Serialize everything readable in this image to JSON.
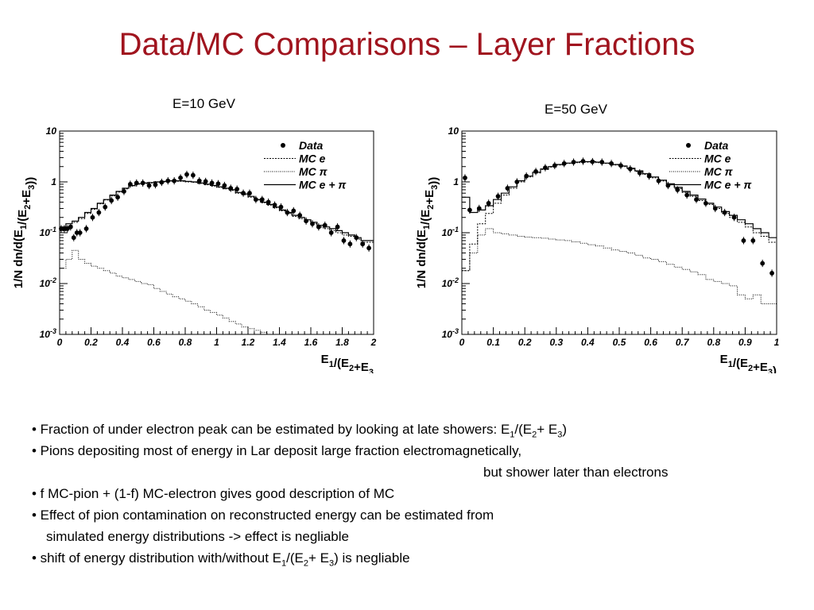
{
  "slide": {
    "title": "Data/MC Comparisons – Layer Fractions"
  },
  "notes": [
    {
      "parts": [
        {
          "t": "• Fraction of under electron peak can be estimated by looking at late showers: E"
        },
        {
          "t": "1",
          "sub": true
        },
        {
          "t": "/(E"
        },
        {
          "t": "2",
          "sub": true
        },
        {
          "t": "+ E"
        },
        {
          "t": "3",
          "sub": true
        },
        {
          "t": ")"
        }
      ]
    },
    {
      "parts": [
        {
          "t": "• Pions depositing most of energy in Lar deposit large fraction electromagnetically,"
        }
      ]
    },
    {
      "indent": 568,
      "parts": [
        {
          "t": "but shower later than electrons"
        }
      ]
    },
    {
      "parts": [
        {
          "t": "• f MC-pion + (1-f) MC-electron gives good description of MC"
        }
      ]
    },
    {
      "parts": [
        {
          "t": "• Effect of pion contamination on reconstructed energy can be estimated from"
        }
      ]
    },
    {
      "indent": 18,
      "parts": [
        {
          "t": "simulated energy distributions -> effect is negliable"
        }
      ]
    },
    {
      "parts": [
        {
          "t": "• shift of energy distribution with/without E"
        },
        {
          "t": "1",
          "sub": true
        },
        {
          "t": "/(E"
        },
        {
          "t": "2",
          "sub": true
        },
        {
          "t": "+ E"
        },
        {
          "t": "3",
          "sub": true
        },
        {
          "t": ") is negliable"
        }
      ]
    }
  ],
  "chart_data": [
    {
      "type": "scatter",
      "title": "E=10 GeV",
      "xlabel": "E1/(E2+E3",
      "ylabel": "1/N dn/d(E1/(E2+E3))",
      "y_scale": "log",
      "xlim": [
        0,
        2
      ],
      "ylim": [
        0.001,
        10
      ],
      "x_ticks": [
        0,
        0.2,
        0.4,
        0.6,
        0.8,
        1,
        1.2,
        1.4,
        1.6,
        1.8,
        2
      ],
      "x_tick_labels": [
        "0",
        "0.2",
        "0.4",
        "0.6",
        "0.8",
        "1",
        "1.2",
        "1.4",
        "1.6",
        "1.8",
        "2"
      ],
      "y_ticks": [
        0.001,
        0.01,
        0.1,
        1,
        10
      ],
      "y_tick_labels": [
        [
          "10",
          "-3"
        ],
        [
          "10",
          "-2"
        ],
        [
          "10",
          "-1"
        ],
        [
          "1",
          ""
        ],
        [
          "10",
          ""
        ]
      ],
      "legend": {
        "position": "top-right",
        "entries": [
          {
            "label": "Data",
            "style": "marker"
          },
          {
            "label": "MC e",
            "style": "dashed"
          },
          {
            "label": "MC π",
            "style": "dotted"
          },
          {
            "label": "MC e + π",
            "style": "solid"
          }
        ]
      },
      "series": [
        {
          "name": "Data",
          "style": "marker",
          "x": [
            0.01,
            0.03,
            0.05,
            0.07,
            0.09,
            0.11,
            0.13,
            0.17,
            0.21,
            0.25,
            0.29,
            0.33,
            0.37,
            0.41,
            0.45,
            0.49,
            0.53,
            0.57,
            0.61,
            0.65,
            0.69,
            0.73,
            0.77,
            0.81,
            0.85,
            0.89,
            0.93,
            0.97,
            1.01,
            1.05,
            1.09,
            1.13,
            1.17,
            1.21,
            1.25,
            1.29,
            1.33,
            1.37,
            1.41,
            1.45,
            1.49,
            1.53,
            1.57,
            1.61,
            1.65,
            1.69,
            1.73,
            1.77,
            1.81,
            1.85,
            1.89,
            1.93,
            1.97
          ],
          "y": [
            0.12,
            0.12,
            0.12,
            0.13,
            0.08,
            0.1,
            0.1,
            0.12,
            0.2,
            0.25,
            0.32,
            0.43,
            0.5,
            0.65,
            0.9,
            0.95,
            0.95,
            0.85,
            0.88,
            0.98,
            1.05,
            1.05,
            1.2,
            1.4,
            1.35,
            1.05,
            1.02,
            0.95,
            0.92,
            0.85,
            0.75,
            0.72,
            0.6,
            0.6,
            0.45,
            0.45,
            0.4,
            0.35,
            0.32,
            0.25,
            0.27,
            0.22,
            0.17,
            0.15,
            0.13,
            0.14,
            0.1,
            0.13,
            0.07,
            0.06,
            0.08,
            0.06,
            0.05
          ]
        },
        {
          "name": "MC e + π",
          "style": "solid",
          "x": [
            0.02,
            0.06,
            0.1,
            0.14,
            0.18,
            0.22,
            0.26,
            0.3,
            0.34,
            0.38,
            0.42,
            0.46,
            0.5,
            0.54,
            0.58,
            0.62,
            0.66,
            0.7,
            0.74,
            0.78,
            0.82,
            0.86,
            0.9,
            0.94,
            0.98,
            1.02,
            1.06,
            1.1,
            1.14,
            1.18,
            1.22,
            1.26,
            1.3,
            1.34,
            1.38,
            1.42,
            1.46,
            1.5,
            1.54,
            1.58,
            1.62,
            1.66,
            1.7,
            1.74,
            1.78,
            1.82,
            1.86,
            1.9,
            1.94,
            1.98
          ],
          "y": [
            0.13,
            0.15,
            0.17,
            0.2,
            0.25,
            0.3,
            0.38,
            0.45,
            0.55,
            0.65,
            0.75,
            0.85,
            0.92,
            0.95,
            0.97,
            1.0,
            1.02,
            1.05,
            1.05,
            1.05,
            1.02,
            1.0,
            0.95,
            0.9,
            0.85,
            0.8,
            0.75,
            0.7,
            0.62,
            0.58,
            0.52,
            0.45,
            0.4,
            0.36,
            0.32,
            0.28,
            0.25,
            0.22,
            0.2,
            0.18,
            0.16,
            0.14,
            0.13,
            0.12,
            0.11,
            0.1,
            0.09,
            0.08,
            0.07,
            0.07
          ]
        },
        {
          "name": "MC e",
          "style": "dashed",
          "x": [
            0.02,
            0.06,
            0.1,
            0.14,
            0.18,
            0.22,
            0.26,
            0.3,
            0.34,
            0.38,
            0.42,
            0.46,
            0.5,
            0.54,
            0.58,
            0.62,
            0.66,
            0.7,
            0.74,
            0.78,
            0.82,
            0.86,
            0.9,
            0.94,
            0.98,
            1.02,
            1.06,
            1.1,
            1.14,
            1.18,
            1.22,
            1.26,
            1.3,
            1.34,
            1.38,
            1.42,
            1.46,
            1.5,
            1.54,
            1.58,
            1.62,
            1.66,
            1.7,
            1.74,
            1.78,
            1.82,
            1.86,
            1.9,
            1.94,
            1.98
          ],
          "y": [
            0.11,
            0.13,
            0.16,
            0.19,
            0.24,
            0.29,
            0.37,
            0.44,
            0.53,
            0.63,
            0.73,
            0.83,
            0.9,
            0.93,
            0.95,
            0.98,
            1.0,
            1.03,
            1.03,
            1.03,
            1.0,
            0.98,
            0.93,
            0.88,
            0.83,
            0.78,
            0.73,
            0.68,
            0.6,
            0.56,
            0.5,
            0.44,
            0.39,
            0.35,
            0.31,
            0.27,
            0.24,
            0.21,
            0.19,
            0.17,
            0.15,
            0.13,
            0.12,
            0.11,
            0.1,
            0.09,
            0.085,
            0.075,
            0.065,
            0.065
          ]
        },
        {
          "name": "MC π",
          "style": "dotted",
          "x": [
            0.02,
            0.06,
            0.1,
            0.14,
            0.18,
            0.22,
            0.26,
            0.3,
            0.34,
            0.38,
            0.42,
            0.46,
            0.5,
            0.54,
            0.58,
            0.62,
            0.66,
            0.7,
            0.74,
            0.78,
            0.82,
            0.86,
            0.9,
            0.94,
            0.98,
            1.02,
            1.06,
            1.1,
            1.14,
            1.18,
            1.22,
            1.26,
            1.3,
            1.34,
            1.38
          ],
          "y": [
            0.02,
            0.03,
            0.045,
            0.03,
            0.025,
            0.022,
            0.02,
            0.018,
            0.016,
            0.014,
            0.013,
            0.012,
            0.011,
            0.01,
            0.0095,
            0.008,
            0.007,
            0.0062,
            0.0055,
            0.005,
            0.0045,
            0.004,
            0.0035,
            0.003,
            0.0027,
            0.0024,
            0.0021,
            0.0018,
            0.0016,
            0.0014,
            0.0013,
            0.0012,
            0.0011,
            0.001,
            0.001
          ]
        }
      ]
    },
    {
      "type": "scatter",
      "title": "E=50 GeV",
      "xlabel": "E1/(E2+E3)",
      "ylabel": "1/N dn/d(E1/(E2+E3))",
      "y_scale": "log",
      "xlim": [
        0,
        1
      ],
      "ylim": [
        0.001,
        10
      ],
      "x_ticks": [
        0,
        0.1,
        0.2,
        0.3,
        0.4,
        0.5,
        0.6,
        0.7,
        0.8,
        0.9,
        1
      ],
      "x_tick_labels": [
        "0",
        "0.1",
        "0.2",
        "0.3",
        "0.4",
        "0.5",
        "0.6",
        "0.7",
        "0.8",
        "0.9",
        "1"
      ],
      "y_ticks": [
        0.001,
        0.01,
        0.1,
        1,
        10
      ],
      "y_tick_labels": [
        [
          "10",
          "-3"
        ],
        [
          "10",
          "-2"
        ],
        [
          "10",
          "-1"
        ],
        [
          "1",
          ""
        ],
        [
          "10",
          ""
        ]
      ],
      "legend": {
        "position": "top-right",
        "entries": [
          {
            "label": "Data",
            "style": "marker"
          },
          {
            "label": "MC e",
            "style": "dashed"
          },
          {
            "label": "MC π",
            "style": "dotted"
          },
          {
            "label": "MC e + π",
            "style": "solid"
          }
        ]
      },
      "series": [
        {
          "name": "Data",
          "style": "marker",
          "x": [
            0.01,
            0.025,
            0.055,
            0.085,
            0.115,
            0.145,
            0.175,
            0.205,
            0.235,
            0.265,
            0.295,
            0.325,
            0.355,
            0.385,
            0.415,
            0.445,
            0.475,
            0.505,
            0.535,
            0.565,
            0.595,
            0.625,
            0.655,
            0.685,
            0.715,
            0.745,
            0.775,
            0.805,
            0.835,
            0.865,
            0.895,
            0.925,
            0.955,
            0.985
          ],
          "y": [
            1.2,
            0.28,
            0.3,
            0.38,
            0.52,
            0.75,
            1.0,
            1.3,
            1.6,
            1.9,
            2.1,
            2.3,
            2.45,
            2.55,
            2.5,
            2.45,
            2.3,
            2.1,
            1.8,
            1.5,
            1.3,
            1.05,
            0.85,
            0.7,
            0.55,
            0.45,
            0.38,
            0.3,
            0.25,
            0.2,
            0.07,
            0.07,
            0.025,
            0.016
          ]
        },
        {
          "name": "MC e + π",
          "style": "solid",
          "x": [
            0.0125,
            0.0375,
            0.0625,
            0.0875,
            0.1125,
            0.1375,
            0.1625,
            0.1875,
            0.2125,
            0.2375,
            0.2625,
            0.2875,
            0.3125,
            0.3375,
            0.3625,
            0.3875,
            0.4125,
            0.4375,
            0.4625,
            0.4875,
            0.5125,
            0.5375,
            0.5625,
            0.5875,
            0.6125,
            0.6375,
            0.6625,
            0.6875,
            0.7125,
            0.7375,
            0.7625,
            0.7875,
            0.8125,
            0.8375,
            0.8625,
            0.8875,
            0.9125,
            0.9375,
            0.9625,
            0.9875
          ],
          "y": [
            0.5,
            0.25,
            0.28,
            0.34,
            0.45,
            0.6,
            0.8,
            1.05,
            1.3,
            1.55,
            1.8,
            2.0,
            2.2,
            2.35,
            2.45,
            2.5,
            2.5,
            2.45,
            2.35,
            2.2,
            2.05,
            1.85,
            1.65,
            1.45,
            1.25,
            1.08,
            0.92,
            0.78,
            0.65,
            0.55,
            0.46,
            0.38,
            0.32,
            0.26,
            0.22,
            0.18,
            0.15,
            0.12,
            0.1,
            0.08
          ]
        },
        {
          "name": "MC e",
          "style": "dashed",
          "x": [
            0.0125,
            0.0375,
            0.0625,
            0.0875,
            0.1125,
            0.1375,
            0.1625,
            0.1875,
            0.2125,
            0.2375,
            0.2625,
            0.2875,
            0.3125,
            0.3375,
            0.3625,
            0.3875,
            0.4125,
            0.4375,
            0.4625,
            0.4875,
            0.5125,
            0.5375,
            0.5625,
            0.5875,
            0.6125,
            0.6375,
            0.6625,
            0.6875,
            0.7125,
            0.7375,
            0.7625,
            0.7875,
            0.8125,
            0.8375,
            0.8625,
            0.8875,
            0.9125,
            0.9375,
            0.9625,
            0.9875
          ],
          "y": [
            0.018,
            0.06,
            0.15,
            0.24,
            0.38,
            0.55,
            0.75,
            1.0,
            1.25,
            1.5,
            1.75,
            1.95,
            2.15,
            2.3,
            2.4,
            2.45,
            2.45,
            2.4,
            2.3,
            2.15,
            2.0,
            1.8,
            1.6,
            1.4,
            1.2,
            1.04,
            0.88,
            0.74,
            0.62,
            0.52,
            0.43,
            0.36,
            0.3,
            0.24,
            0.2,
            0.16,
            0.13,
            0.1,
            0.085,
            0.065
          ]
        },
        {
          "name": "MC π",
          "style": "dotted",
          "x": [
            0.0125,
            0.0375,
            0.0625,
            0.0875,
            0.1125,
            0.1375,
            0.1625,
            0.1875,
            0.2125,
            0.2375,
            0.2625,
            0.2875,
            0.3125,
            0.3375,
            0.3625,
            0.3875,
            0.4125,
            0.4375,
            0.4625,
            0.4875,
            0.5125,
            0.5375,
            0.5625,
            0.5875,
            0.6125,
            0.6375,
            0.6625,
            0.6875,
            0.7125,
            0.7375,
            0.7625,
            0.7875,
            0.8125,
            0.8375,
            0.8625,
            0.8875,
            0.9125,
            0.9375,
            0.9625,
            0.9875
          ],
          "y": [
            0.018,
            0.04,
            0.09,
            0.12,
            0.1,
            0.095,
            0.09,
            0.085,
            0.082,
            0.08,
            0.078,
            0.075,
            0.072,
            0.07,
            0.066,
            0.062,
            0.058,
            0.055,
            0.05,
            0.046,
            0.043,
            0.04,
            0.036,
            0.032,
            0.03,
            0.027,
            0.024,
            0.021,
            0.019,
            0.017,
            0.015,
            0.012,
            0.011,
            0.01,
            0.009,
            0.006,
            0.005,
            0.006,
            0.004,
            0.004
          ]
        }
      ]
    }
  ]
}
